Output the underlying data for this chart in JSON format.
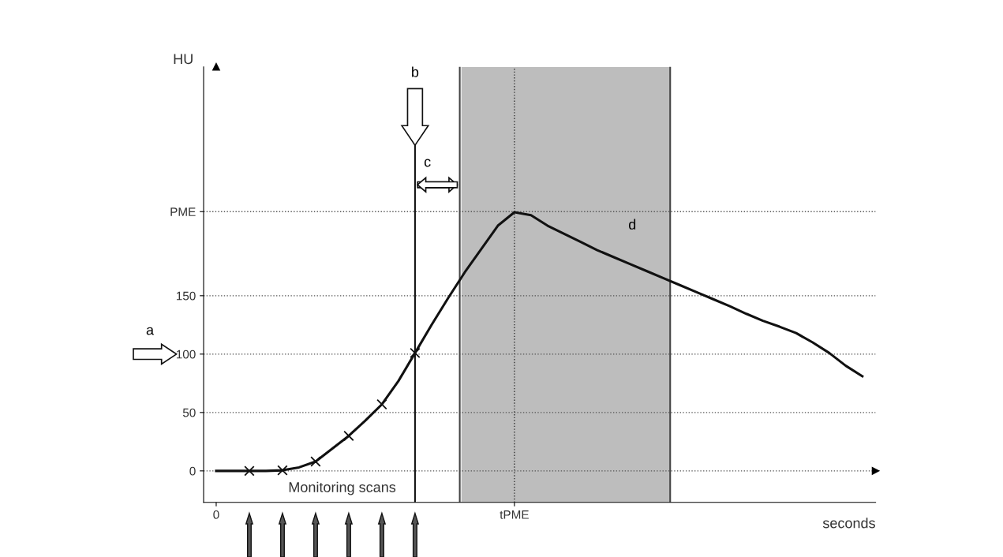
{
  "chart_data": {
    "type": "line",
    "xlabel": "seconds",
    "ylabel": "HU",
    "categories": [
      "0",
      null,
      null,
      null,
      null,
      null,
      null,
      null,
      null,
      null,
      null,
      null,
      null,
      null,
      null,
      null,
      null,
      null,
      "tPME",
      null,
      null,
      null,
      null,
      null,
      null,
      null,
      null,
      null,
      null,
      null,
      null,
      null,
      null,
      null,
      null,
      null,
      null,
      null,
      null,
      null
    ],
    "series": [
      {
        "type": "line",
        "color": "#111111",
        "marker": "none",
        "values": [
          0,
          0,
          0,
          0,
          0.5,
          3,
          8,
          19,
          30,
          43,
          57,
          77,
          101,
          125,
          148,
          170,
          190,
          210,
          221.5,
          219,
          210,
          203,
          196,
          189,
          183,
          177,
          171,
          165,
          159,
          153,
          147,
          141,
          134.5,
          128.5,
          123.5,
          118,
          110,
          101,
          90,
          81
        ]
      },
      {
        "type": "scatter",
        "color": "#111111",
        "marker": "cross",
        "values": [
          null,
          null,
          0,
          null,
          0.5,
          null,
          8,
          null,
          30,
          null,
          57,
          null,
          101,
          null,
          null,
          null,
          null,
          null,
          null,
          null,
          null,
          null,
          null,
          null,
          null,
          null,
          null,
          null,
          null,
          null,
          null,
          null,
          null,
          null,
          null,
          null,
          null,
          null,
          null,
          null
        ]
      }
    ],
    "ylim": [
      -27,
      346
    ],
    "yticks": [
      0,
      50,
      100,
      150,
      {
        "value": 222,
        "label": "PME"
      }
    ],
    "grid": "y",
    "annotations": [
      "a",
      "b",
      "c",
      "d",
      "Monitoring scans"
    ]
  }
}
